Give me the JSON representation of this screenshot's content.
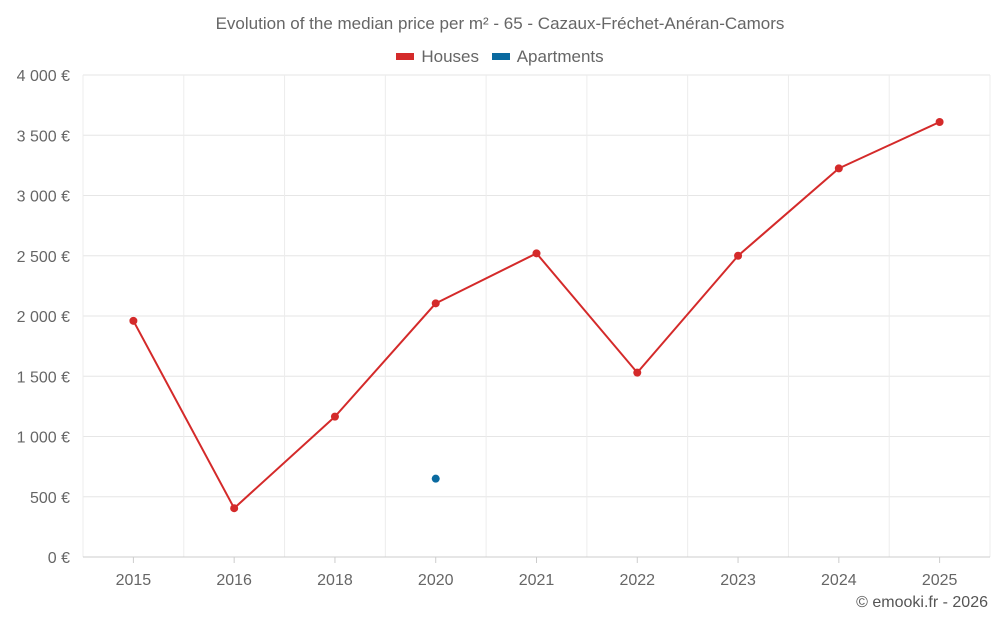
{
  "chart_data": {
    "type": "line",
    "title": "Evolution of the median price per m² - 65 - Cazaux-Fréchet-Anéran-Camors",
    "categories": [
      "2015",
      "2016",
      "2018",
      "2020",
      "2021",
      "2022",
      "2023",
      "2024",
      "2025"
    ],
    "series": [
      {
        "name": "Houses",
        "color": "#d42a2a",
        "values": [
          1960,
          405,
          1165,
          2105,
          2520,
          1530,
          2500,
          3225,
          3610
        ]
      },
      {
        "name": "Apartments",
        "color": "#0a6aa0",
        "values": [
          null,
          null,
          null,
          650,
          null,
          null,
          null,
          null,
          null
        ]
      }
    ],
    "xlabel": "",
    "ylabel": "",
    "ylim": [
      0,
      4000
    ],
    "yticks": [
      "0 €",
      "500 €",
      "1 000 €",
      "1 500 €",
      "2 000 €",
      "2 500 €",
      "3 000 €",
      "3 500 €",
      "4 000 €"
    ],
    "ytick_values": [
      0,
      500,
      1000,
      1500,
      2000,
      2500,
      3000,
      3500,
      4000
    ],
    "grid": true,
    "legend_position": "top-center"
  },
  "credit": "© emooki.fr - 2026"
}
